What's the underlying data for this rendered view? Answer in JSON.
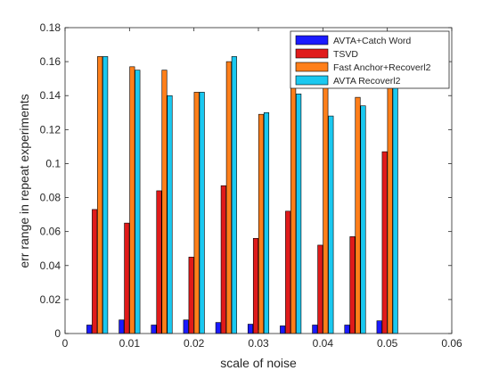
{
  "chart_data": {
    "type": "bar",
    "xlabel": "scale of noise",
    "ylabel": "err range in repeat experiments",
    "xlim": [
      0,
      0.06
    ],
    "ylim": [
      0,
      0.18
    ],
    "x_ticks": [
      "0",
      "0.01",
      "0.02",
      "0.03",
      "0.04",
      "0.05",
      "0.06"
    ],
    "y_ticks": [
      "0",
      "0.02",
      "0.04",
      "0.06",
      "0.08",
      "0.1",
      "0.12",
      "0.14",
      "0.16",
      "0.18"
    ],
    "x": [
      0.005,
      0.01,
      0.015,
      0.02,
      0.025,
      0.03,
      0.035,
      0.04,
      0.045,
      0.05
    ],
    "series": [
      {
        "name": "AVTA+Catch Word",
        "color": "#1a1aff",
        "values": [
          0.005,
          0.008,
          0.005,
          0.008,
          0.0065,
          0.0055,
          0.0045,
          0.005,
          0.005,
          0.0075
        ]
      },
      {
        "name": "TSVD",
        "color": "#e01a1a",
        "values": [
          0.073,
          0.065,
          0.084,
          0.045,
          0.087,
          0.056,
          0.072,
          0.052,
          0.057,
          0.107
        ]
      },
      {
        "name": "Fast Anchor+Recoverl2",
        "color": "#ff7f1a",
        "values": [
          0.163,
          0.157,
          0.155,
          0.142,
          0.16,
          0.129,
          0.155,
          0.155,
          0.139,
          0.155
        ]
      },
      {
        "name": "AVTA Recoverl2",
        "color": "#1ac8f0",
        "values": [
          0.163,
          0.155,
          0.14,
          0.142,
          0.163,
          0.13,
          0.141,
          0.128,
          0.134,
          0.155
        ]
      }
    ],
    "grid": false,
    "legend_position": "top-right"
  }
}
